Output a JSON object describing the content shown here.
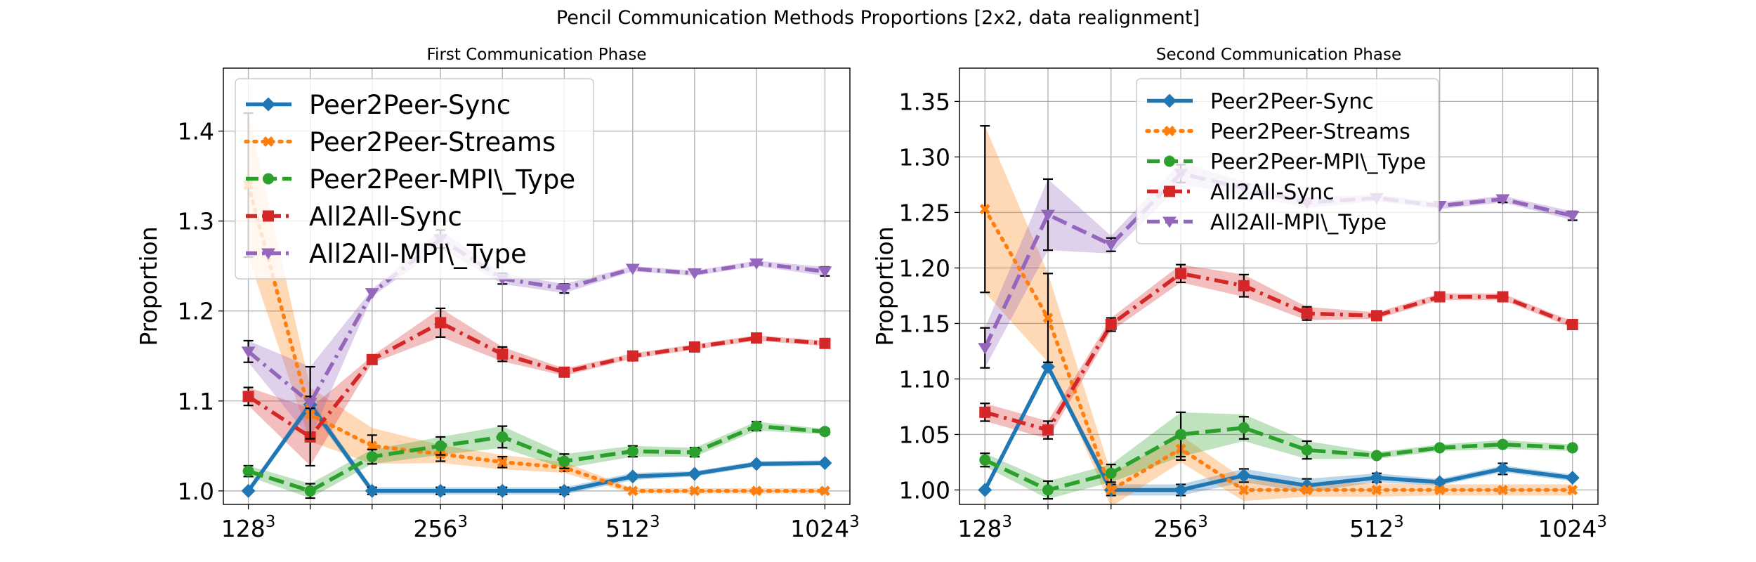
{
  "figure": {
    "title": "Pencil Communication Methods Proportions [2x2, data realignment]"
  },
  "series_colors": {
    "Peer2Peer-Sync": "#1f77b4",
    "Peer2Peer-Streams": "#ff7f0e",
    "Peer2Peer-MPI\\_Type": "#2ca02c",
    "All2All-Sync": "#d62728",
    "All2All-MPI\\_Type": "#9467bd"
  },
  "chart_data": [
    {
      "type": "line",
      "title": "First Communication Phase",
      "xlabel": "",
      "ylabel": "Proportion",
      "x": [
        128,
        160,
        200,
        256,
        320,
        400,
        512,
        640,
        800,
        1024
      ],
      "x_scale": "log2",
      "xticks": [
        {
          "value": 128,
          "label": "128",
          "sup": "3"
        },
        {
          "value": 256,
          "label": "256",
          "sup": "3"
        },
        {
          "value": 512,
          "label": "512",
          "sup": "3"
        },
        {
          "value": 1024,
          "label": "1024",
          "sup": "3"
        }
      ],
      "ylim": [
        0.985,
        1.47
      ],
      "yticks": [
        1.0,
        1.1,
        1.2,
        1.3,
        1.4
      ],
      "grid": true,
      "legend": "top-left",
      "series": [
        {
          "name": "Peer2Peer-Sync",
          "marker": "diamond",
          "dash": "solid",
          "values": [
            1.0,
            1.096,
            1.0,
            1.0,
            1.0,
            1.0,
            1.016,
            1.019,
            1.03,
            1.031
          ],
          "band": [
            0.002,
            0.006,
            0.004,
            0.004,
            0.004,
            0.004,
            0.004,
            0.003,
            0.003,
            0.003
          ],
          "err": [
            0.0,
            0.0,
            0.004,
            0.004,
            0.004,
            0.004,
            0.0,
            0.0,
            0.0,
            0.0
          ]
        },
        {
          "name": "Peer2Peer-Streams",
          "marker": "x",
          "dash": "dotted",
          "values": [
            1.34,
            1.085,
            1.05,
            1.041,
            1.032,
            1.026,
            1.0,
            1.0,
            1.0,
            1.0
          ],
          "band": [
            0.08,
            0.03,
            0.02,
            0.01,
            0.008,
            0.006,
            0.003,
            0.003,
            0.003,
            0.003
          ],
          "err": [
            0.08,
            0.02,
            0.012,
            0.008,
            0.006,
            0.004,
            0.0,
            0.0,
            0.0,
            0.0
          ]
        },
        {
          "name": "Peer2Peer-MPI\\_Type",
          "marker": "circle",
          "dash": "dashed",
          "values": [
            1.022,
            1.0,
            1.038,
            1.05,
            1.06,
            1.033,
            1.044,
            1.043,
            1.072,
            1.066
          ],
          "band": [
            0.006,
            0.008,
            0.008,
            0.01,
            0.012,
            0.008,
            0.006,
            0.005,
            0.005,
            0.003
          ],
          "err": [
            0.006,
            0.008,
            0.008,
            0.01,
            0.012,
            0.008,
            0.006,
            0.005,
            0.005,
            0.003
          ]
        },
        {
          "name": "All2All-Sync",
          "marker": "square",
          "dash": "dashdot",
          "values": [
            1.105,
            1.06,
            1.146,
            1.187,
            1.152,
            1.132,
            1.15,
            1.16,
            1.17,
            1.164
          ],
          "band": [
            0.01,
            0.032,
            0.004,
            0.016,
            0.008,
            0.004,
            0.003,
            0.003,
            0.003,
            0.003
          ],
          "err": [
            0.01,
            0.032,
            0.0,
            0.016,
            0.008,
            0.004,
            0.0,
            0.0,
            0.0,
            0.0
          ]
        },
        {
          "name": "All2All-MPI\\_Type",
          "marker": "triangle-down",
          "dash": "dashdot",
          "values": [
            1.155,
            1.098,
            1.22,
            1.28,
            1.236,
            1.225,
            1.247,
            1.242,
            1.253,
            1.244
          ],
          "band": [
            0.012,
            0.04,
            0.004,
            0.01,
            0.006,
            0.005,
            0.003,
            0.003,
            0.003,
            0.005
          ],
          "err": [
            0.012,
            0.04,
            0.0,
            0.01,
            0.006,
            0.005,
            0.0,
            0.0,
            0.0,
            0.005
          ]
        }
      ]
    },
    {
      "type": "line",
      "title": "Second Communication Phase",
      "xlabel": "",
      "ylabel": "Proportion",
      "x": [
        128,
        160,
        200,
        256,
        320,
        400,
        512,
        640,
        800,
        1024
      ],
      "x_scale": "log2",
      "xticks": [
        {
          "value": 128,
          "label": "128",
          "sup": "3"
        },
        {
          "value": 256,
          "label": "256",
          "sup": "3"
        },
        {
          "value": 512,
          "label": "512",
          "sup": "3"
        },
        {
          "value": 1024,
          "label": "1024",
          "sup": "3"
        }
      ],
      "ylim": [
        0.987,
        1.38
      ],
      "yticks": [
        1.0,
        1.05,
        1.1,
        1.15,
        1.2,
        1.25,
        1.3,
        1.35
      ],
      "grid": true,
      "legend": "top-center",
      "series": [
        {
          "name": "Peer2Peer-Sync",
          "marker": "diamond",
          "dash": "solid",
          "values": [
            1.0,
            1.111,
            1.0,
            1.0,
            1.013,
            1.004,
            1.011,
            1.007,
            1.019,
            1.011
          ],
          "band": [
            0.002,
            0.004,
            0.005,
            0.005,
            0.006,
            0.006,
            0.004,
            0.003,
            0.003,
            0.003
          ],
          "err": [
            0.0,
            0.0,
            0.005,
            0.005,
            0.006,
            0.006,
            0.004,
            0.0,
            0.005,
            0.0
          ]
        },
        {
          "name": "Peer2Peer-Streams",
          "marker": "x",
          "dash": "dotted",
          "values": [
            1.253,
            1.155,
            1.0,
            1.037,
            1.0,
            1.0,
            1.0,
            1.0,
            1.0,
            1.0
          ],
          "band": [
            0.075,
            0.04,
            0.015,
            0.012,
            0.01,
            0.006,
            0.006,
            0.005,
            0.005,
            0.005
          ],
          "err": [
            0.075,
            0.04,
            0.0,
            0.01,
            0.0,
            0.0,
            0.0,
            0.0,
            0.0,
            0.0
          ]
        },
        {
          "name": "Peer2Peer-MPI\\_Type",
          "marker": "circle",
          "dash": "dashed",
          "values": [
            1.027,
            1.0,
            1.015,
            1.05,
            1.056,
            1.036,
            1.031,
            1.038,
            1.041,
            1.038
          ],
          "band": [
            0.006,
            0.008,
            0.008,
            0.02,
            0.012,
            0.008,
            0.003,
            0.003,
            0.004,
            0.003
          ],
          "err": [
            0.006,
            0.008,
            0.008,
            0.02,
            0.01,
            0.008,
            0.0,
            0.0,
            0.0,
            0.0
          ]
        },
        {
          "name": "All2All-Sync",
          "marker": "square",
          "dash": "dashdot",
          "values": [
            1.07,
            1.054,
            1.149,
            1.195,
            1.184,
            1.159,
            1.157,
            1.174,
            1.174,
            1.149
          ],
          "band": [
            0.008,
            0.008,
            0.006,
            0.008,
            0.01,
            0.006,
            0.003,
            0.003,
            0.003,
            0.003
          ],
          "err": [
            0.008,
            0.008,
            0.006,
            0.008,
            0.01,
            0.006,
            0.0,
            0.0,
            0.0,
            0.0
          ]
        },
        {
          "name": "All2All-MPI\\_Type",
          "marker": "triangle-down",
          "dash": "dashed",
          "values": [
            1.128,
            1.248,
            1.221,
            1.285,
            1.272,
            1.259,
            1.263,
            1.256,
            1.262,
            1.247
          ],
          "band": [
            0.018,
            0.032,
            0.008,
            0.01,
            0.006,
            0.005,
            0.003,
            0.003,
            0.003,
            0.004
          ],
          "err": [
            0.018,
            0.032,
            0.006,
            0.008,
            0.0,
            0.0,
            0.0,
            0.0,
            0.003,
            0.004
          ]
        }
      ]
    }
  ]
}
